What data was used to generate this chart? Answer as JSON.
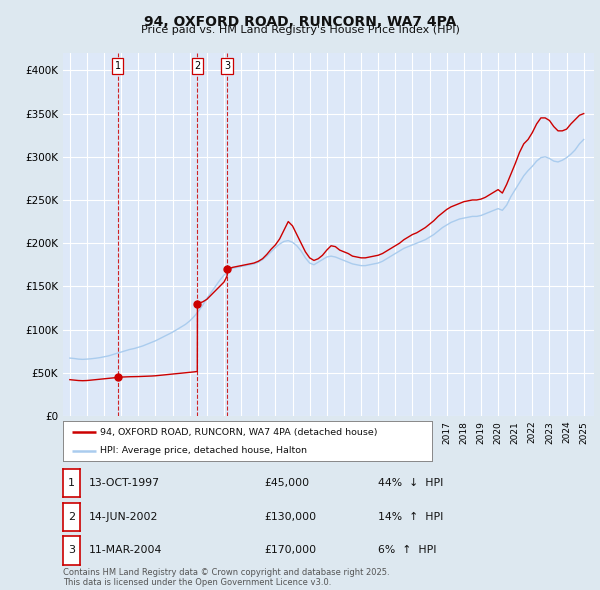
{
  "title": "94, OXFORD ROAD, RUNCORN, WA7 4PA",
  "subtitle": "Price paid vs. HM Land Registry's House Price Index (HPI)",
  "legend_line1": "94, OXFORD ROAD, RUNCORN, WA7 4PA (detached house)",
  "legend_line2": "HPI: Average price, detached house, Halton",
  "transactions": [
    {
      "num": 1,
      "date": "13-OCT-1997",
      "price": 45000,
      "pct": "44%",
      "dir": "↓",
      "year": 1997.79
    },
    {
      "num": 2,
      "date": "14-JUN-2002",
      "price": 130000,
      "pct": "14%",
      "dir": "↑",
      "year": 2002.45
    },
    {
      "num": 3,
      "date": "11-MAR-2004",
      "price": 170000,
      "pct": "6%",
      "dir": "↑",
      "year": 2004.19
    }
  ],
  "ylim": [
    0,
    420000
  ],
  "yticks": [
    0,
    50000,
    100000,
    150000,
    200000,
    250000,
    300000,
    350000,
    400000
  ],
  "ytick_labels": [
    "£0",
    "£50K",
    "£100K",
    "£150K",
    "£200K",
    "£250K",
    "£300K",
    "£350K",
    "£400K"
  ],
  "xlim_start": 1994.6,
  "xlim_end": 2025.6,
  "background_color": "#dde8f0",
  "plot_bg_color": "#dde8f8",
  "grid_color": "#ffffff",
  "red_line_color": "#cc0000",
  "blue_line_color": "#aaccee",
  "transaction_dot_color": "#cc0000",
  "vline_color": "#cc0000",
  "footnote": "Contains HM Land Registry data © Crown copyright and database right 2025.\nThis data is licensed under the Open Government Licence v3.0.",
  "hpi_data": [
    [
      1995.0,
      67000
    ],
    [
      1995.25,
      66500
    ],
    [
      1995.5,
      65800
    ],
    [
      1995.75,
      65500
    ],
    [
      1996.0,
      65800
    ],
    [
      1996.25,
      66200
    ],
    [
      1996.5,
      66800
    ],
    [
      1996.75,
      67500
    ],
    [
      1997.0,
      68500
    ],
    [
      1997.25,
      69500
    ],
    [
      1997.5,
      71000
    ],
    [
      1997.75,
      72500
    ],
    [
      1998.0,
      74000
    ],
    [
      1998.25,
      75500
    ],
    [
      1998.5,
      77000
    ],
    [
      1998.75,
      78000
    ],
    [
      1999.0,
      79500
    ],
    [
      1999.25,
      81000
    ],
    [
      1999.5,
      83000
    ],
    [
      1999.75,
      85000
    ],
    [
      2000.0,
      87000
    ],
    [
      2000.25,
      89500
    ],
    [
      2000.5,
      92000
    ],
    [
      2000.75,
      94500
    ],
    [
      2001.0,
      97000
    ],
    [
      2001.25,
      100000
    ],
    [
      2001.5,
      103000
    ],
    [
      2001.75,
      106000
    ],
    [
      2002.0,
      110000
    ],
    [
      2002.25,
      115000
    ],
    [
      2002.5,
      121000
    ],
    [
      2002.75,
      128000
    ],
    [
      2003.0,
      136000
    ],
    [
      2003.25,
      143000
    ],
    [
      2003.5,
      150000
    ],
    [
      2003.75,
      157000
    ],
    [
      2004.0,
      163000
    ],
    [
      2004.25,
      168000
    ],
    [
      2004.5,
      171000
    ],
    [
      2004.75,
      172000
    ],
    [
      2005.0,
      173000
    ],
    [
      2005.25,
      174000
    ],
    [
      2005.5,
      175000
    ],
    [
      2005.75,
      176000
    ],
    [
      2006.0,
      178000
    ],
    [
      2006.25,
      181000
    ],
    [
      2006.5,
      185000
    ],
    [
      2006.75,
      190000
    ],
    [
      2007.0,
      195000
    ],
    [
      2007.25,
      199000
    ],
    [
      2007.5,
      202000
    ],
    [
      2007.75,
      203000
    ],
    [
      2008.0,
      201000
    ],
    [
      2008.25,
      197000
    ],
    [
      2008.5,
      191000
    ],
    [
      2008.75,
      183000
    ],
    [
      2009.0,
      177000
    ],
    [
      2009.25,
      175000
    ],
    [
      2009.5,
      178000
    ],
    [
      2009.75,
      181000
    ],
    [
      2010.0,
      184000
    ],
    [
      2010.25,
      185000
    ],
    [
      2010.5,
      184000
    ],
    [
      2010.75,
      182000
    ],
    [
      2011.0,
      180000
    ],
    [
      2011.25,
      178000
    ],
    [
      2011.5,
      176000
    ],
    [
      2011.75,
      175000
    ],
    [
      2012.0,
      174000
    ],
    [
      2012.25,
      174000
    ],
    [
      2012.5,
      175000
    ],
    [
      2012.75,
      176000
    ],
    [
      2013.0,
      177000
    ],
    [
      2013.25,
      179000
    ],
    [
      2013.5,
      182000
    ],
    [
      2013.75,
      185000
    ],
    [
      2014.0,
      188000
    ],
    [
      2014.25,
      191000
    ],
    [
      2014.5,
      194000
    ],
    [
      2014.75,
      196000
    ],
    [
      2015.0,
      198000
    ],
    [
      2015.25,
      200000
    ],
    [
      2015.5,
      202000
    ],
    [
      2015.75,
      204000
    ],
    [
      2016.0,
      207000
    ],
    [
      2016.25,
      210000
    ],
    [
      2016.5,
      214000
    ],
    [
      2016.75,
      218000
    ],
    [
      2017.0,
      221000
    ],
    [
      2017.25,
      224000
    ],
    [
      2017.5,
      226000
    ],
    [
      2017.75,
      228000
    ],
    [
      2018.0,
      229000
    ],
    [
      2018.25,
      230000
    ],
    [
      2018.5,
      231000
    ],
    [
      2018.75,
      231000
    ],
    [
      2019.0,
      232000
    ],
    [
      2019.25,
      234000
    ],
    [
      2019.5,
      236000
    ],
    [
      2019.75,
      238000
    ],
    [
      2020.0,
      240000
    ],
    [
      2020.25,
      238000
    ],
    [
      2020.5,
      244000
    ],
    [
      2020.75,
      254000
    ],
    [
      2021.0,
      262000
    ],
    [
      2021.25,
      270000
    ],
    [
      2021.5,
      278000
    ],
    [
      2021.75,
      284000
    ],
    [
      2022.0,
      289000
    ],
    [
      2022.25,
      295000
    ],
    [
      2022.5,
      299000
    ],
    [
      2022.75,
      300000
    ],
    [
      2023.0,
      298000
    ],
    [
      2023.25,
      295000
    ],
    [
      2023.5,
      294000
    ],
    [
      2023.75,
      296000
    ],
    [
      2024.0,
      299000
    ],
    [
      2024.25,
      303000
    ],
    [
      2024.5,
      308000
    ],
    [
      2024.75,
      315000
    ],
    [
      2025.0,
      320000
    ]
  ],
  "house_price_data": [
    [
      1995.0,
      42000
    ],
    [
      1995.25,
      41500
    ],
    [
      1995.5,
      41000
    ],
    [
      1995.75,
      40800
    ],
    [
      1996.0,
      41000
    ],
    [
      1996.25,
      41500
    ],
    [
      1996.5,
      42000
    ],
    [
      1996.75,
      42500
    ],
    [
      1997.0,
      43000
    ],
    [
      1997.25,
      43500
    ],
    [
      1997.5,
      44000
    ],
    [
      1997.75,
      44500
    ],
    [
      1997.79,
      45000
    ],
    [
      1997.82,
      45000
    ],
    [
      1998.0,
      45000
    ],
    [
      1998.25,
      45200
    ],
    [
      1998.5,
      45400
    ],
    [
      1998.75,
      45500
    ],
    [
      1999.0,
      45600
    ],
    [
      1999.25,
      45800
    ],
    [
      1999.5,
      46000
    ],
    [
      1999.75,
      46200
    ],
    [
      2000.0,
      46500
    ],
    [
      2000.25,
      47000
    ],
    [
      2000.5,
      47500
    ],
    [
      2000.75,
      48000
    ],
    [
      2001.0,
      48500
    ],
    [
      2001.25,
      49000
    ],
    [
      2001.5,
      49500
    ],
    [
      2001.75,
      50000
    ],
    [
      2002.0,
      50500
    ],
    [
      2002.25,
      51000
    ],
    [
      2002.44,
      51500
    ],
    [
      2002.45,
      130000
    ],
    [
      2002.5,
      130500
    ],
    [
      2002.75,
      132000
    ],
    [
      2003.0,
      135000
    ],
    [
      2003.25,
      140000
    ],
    [
      2003.5,
      145000
    ],
    [
      2003.75,
      150000
    ],
    [
      2004.0,
      155000
    ],
    [
      2004.18,
      162000
    ],
    [
      2004.19,
      170000
    ],
    [
      2004.25,
      170000
    ],
    [
      2004.5,
      172000
    ],
    [
      2004.75,
      173000
    ],
    [
      2005.0,
      174000
    ],
    [
      2005.25,
      175000
    ],
    [
      2005.5,
      176000
    ],
    [
      2005.75,
      177000
    ],
    [
      2006.0,
      179000
    ],
    [
      2006.25,
      182000
    ],
    [
      2006.5,
      187000
    ],
    [
      2006.75,
      193000
    ],
    [
      2007.0,
      198000
    ],
    [
      2007.25,
      205000
    ],
    [
      2007.5,
      215000
    ],
    [
      2007.75,
      225000
    ],
    [
      2008.0,
      220000
    ],
    [
      2008.25,
      210000
    ],
    [
      2008.5,
      200000
    ],
    [
      2008.75,
      190000
    ],
    [
      2009.0,
      183000
    ],
    [
      2009.25,
      180000
    ],
    [
      2009.5,
      182000
    ],
    [
      2009.75,
      186000
    ],
    [
      2010.0,
      192000
    ],
    [
      2010.25,
      197000
    ],
    [
      2010.5,
      196000
    ],
    [
      2010.75,
      192000
    ],
    [
      2011.0,
      190000
    ],
    [
      2011.25,
      188000
    ],
    [
      2011.5,
      185000
    ],
    [
      2011.75,
      184000
    ],
    [
      2012.0,
      183000
    ],
    [
      2012.25,
      183000
    ],
    [
      2012.5,
      184000
    ],
    [
      2012.75,
      185000
    ],
    [
      2013.0,
      186000
    ],
    [
      2013.25,
      188000
    ],
    [
      2013.5,
      191000
    ],
    [
      2013.75,
      194000
    ],
    [
      2014.0,
      197000
    ],
    [
      2014.25,
      200000
    ],
    [
      2014.5,
      204000
    ],
    [
      2014.75,
      207000
    ],
    [
      2015.0,
      210000
    ],
    [
      2015.25,
      212000
    ],
    [
      2015.5,
      215000
    ],
    [
      2015.75,
      218000
    ],
    [
      2016.0,
      222000
    ],
    [
      2016.25,
      226000
    ],
    [
      2016.5,
      231000
    ],
    [
      2016.75,
      235000
    ],
    [
      2017.0,
      239000
    ],
    [
      2017.25,
      242000
    ],
    [
      2017.5,
      244000
    ],
    [
      2017.75,
      246000
    ],
    [
      2018.0,
      248000
    ],
    [
      2018.25,
      249000
    ],
    [
      2018.5,
      250000
    ],
    [
      2018.75,
      250000
    ],
    [
      2019.0,
      251000
    ],
    [
      2019.25,
      253000
    ],
    [
      2019.5,
      256000
    ],
    [
      2019.75,
      259000
    ],
    [
      2020.0,
      262000
    ],
    [
      2020.25,
      258000
    ],
    [
      2020.5,
      268000
    ],
    [
      2020.75,
      280000
    ],
    [
      2021.0,
      292000
    ],
    [
      2021.25,
      305000
    ],
    [
      2021.5,
      315000
    ],
    [
      2021.75,
      320000
    ],
    [
      2022.0,
      328000
    ],
    [
      2022.25,
      338000
    ],
    [
      2022.5,
      345000
    ],
    [
      2022.75,
      345000
    ],
    [
      2023.0,
      342000
    ],
    [
      2023.25,
      335000
    ],
    [
      2023.5,
      330000
    ],
    [
      2023.75,
      330000
    ],
    [
      2024.0,
      332000
    ],
    [
      2024.25,
      338000
    ],
    [
      2024.5,
      343000
    ],
    [
      2024.75,
      348000
    ],
    [
      2025.0,
      350000
    ]
  ]
}
